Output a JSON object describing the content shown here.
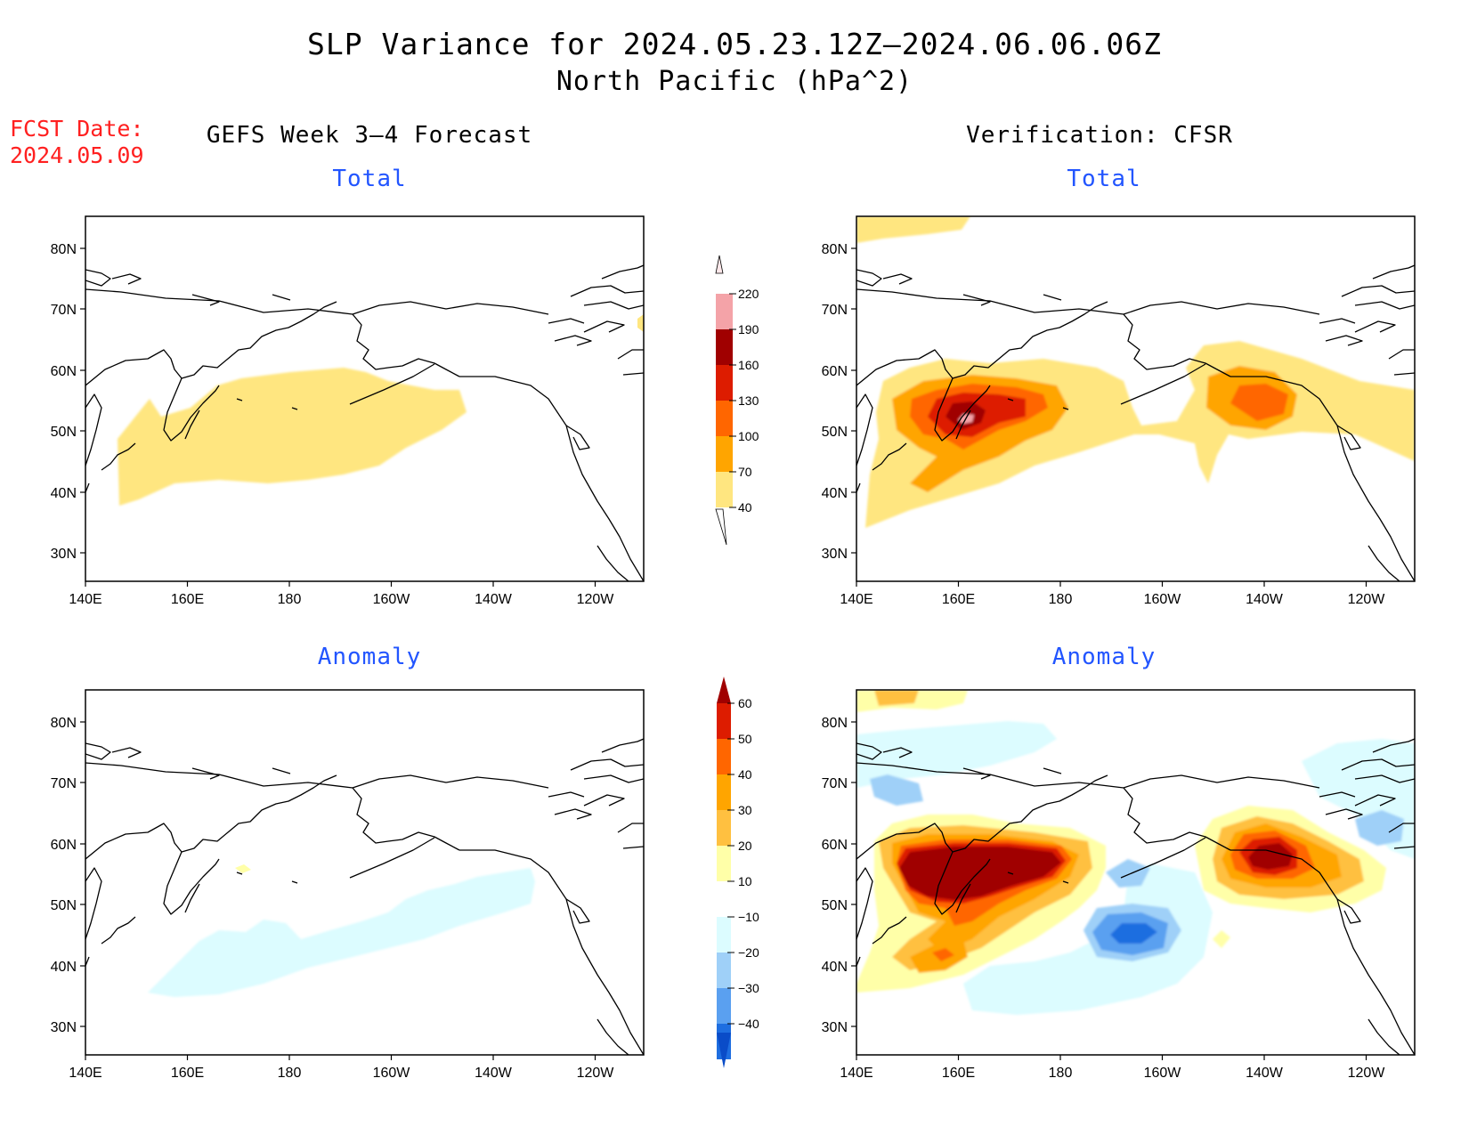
{
  "title": {
    "line1": "SLP Variance for 2024.05.23.12Z–2024.06.06.06Z",
    "line2": "North Pacific (hPa^2)"
  },
  "forecast_date": {
    "label": "FCST Date:",
    "value": "2024.05.09"
  },
  "columns": {
    "left": "GEFS Week 3–4 Forecast",
    "right": "Verification: CFSR"
  },
  "panel_titles": {
    "total": "Total",
    "anomaly": "Anomaly"
  },
  "axes": {
    "lon_ticks": [
      "140E",
      "160E",
      "180",
      "160W",
      "140W",
      "120W"
    ],
    "lat_ticks": [
      "80N",
      "70N",
      "60N",
      "50N",
      "40N",
      "30N"
    ]
  },
  "colorbars": {
    "total": {
      "labels": [
        "220",
        "190",
        "160",
        "130",
        "100",
        "70",
        "40"
      ],
      "colors": [
        "#f4a3a8",
        "#a00000",
        "#dd1c00",
        "#ff6600",
        "#ffa500",
        "#ffe680"
      ]
    },
    "anomaly": {
      "labels": [
        "60",
        "50",
        "40",
        "30",
        "20",
        "10",
        "−10",
        "−20",
        "−30",
        "−40"
      ],
      "colors": [
        "#a00000",
        "#dd1c00",
        "#ff6600",
        "#ffa500",
        "#ffc040",
        "#ffffa8",
        "#ffffff",
        "#dcfcff",
        "#9fd0f8",
        "#5aa0f0",
        "#1e6ee0",
        "#0a4cc8"
      ]
    }
  },
  "colors": {
    "land_outline": "#000000",
    "title_blue": "#2255ff",
    "fcst_red": "#ff2020"
  }
}
